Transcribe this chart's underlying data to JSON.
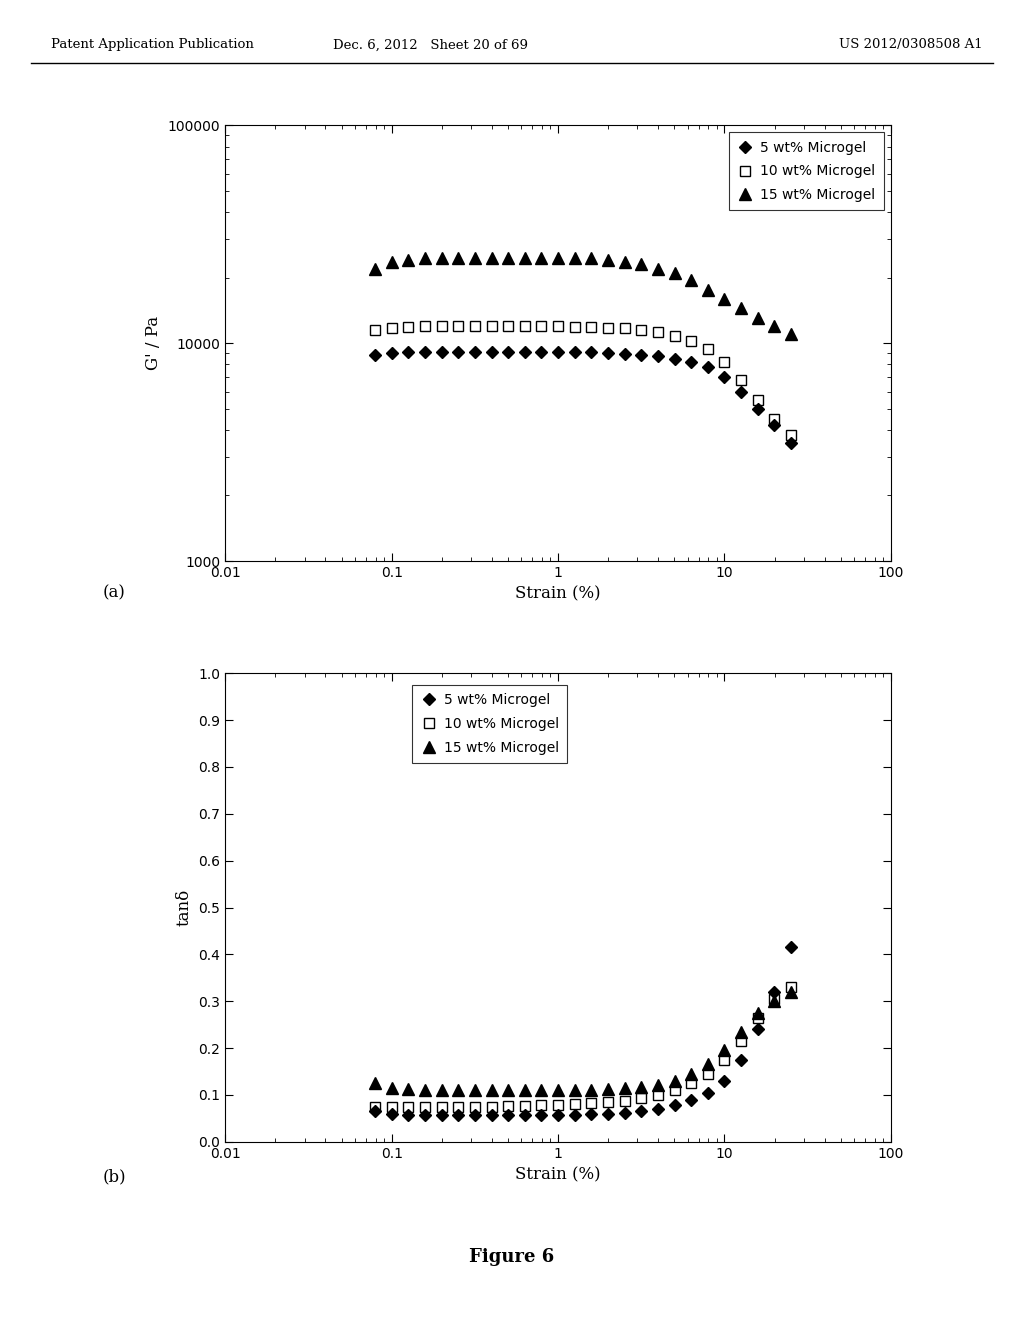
{
  "header_left": "Patent Application Publication",
  "header_mid": "Dec. 6, 2012   Sheet 20 of 69",
  "header_right": "US 2012/0308508 A1",
  "figure_label": "Figure 6",
  "panel_a_label": "(a)",
  "panel_b_label": "(b)",
  "bg_color": "#ffffff",
  "plot_bg": "#ffffff",
  "panel_a": {
    "ylabel": "G' / Pa",
    "xlabel": "Strain (%)",
    "xlim": [
      0.01,
      100
    ],
    "ylim": [
      1000,
      100000
    ],
    "legend_entries": [
      "5 wt% Microgel",
      "10 wt% Microgel",
      "15 wt% Microgel"
    ],
    "series": {
      "s5": {
        "x": [
          0.0794,
          0.1,
          0.126,
          0.158,
          0.2,
          0.251,
          0.316,
          0.398,
          0.501,
          0.631,
          0.794,
          1.0,
          1.259,
          1.585,
          1.995,
          2.512,
          3.162,
          3.981,
          5.012,
          6.31,
          7.943,
          10.0,
          12.59,
          15.85,
          19.95,
          25.12
        ],
        "y": [
          8800,
          9000,
          9100,
          9100,
          9100,
          9100,
          9100,
          9100,
          9100,
          9100,
          9100,
          9100,
          9100,
          9100,
          9000,
          8900,
          8800,
          8700,
          8500,
          8200,
          7800,
          7000,
          6000,
          5000,
          4200,
          3500
        ],
        "marker": "D",
        "color": "#000000",
        "filled": true,
        "markersize": 6
      },
      "s10": {
        "x": [
          0.0794,
          0.1,
          0.126,
          0.158,
          0.2,
          0.251,
          0.316,
          0.398,
          0.501,
          0.631,
          0.794,
          1.0,
          1.259,
          1.585,
          1.995,
          2.512,
          3.162,
          3.981,
          5.012,
          6.31,
          7.943,
          10.0,
          12.59,
          15.85,
          19.95,
          25.12
        ],
        "y": [
          11500,
          11800,
          11900,
          12000,
          12000,
          12000,
          12000,
          12000,
          12000,
          12000,
          12000,
          12000,
          11900,
          11900,
          11800,
          11700,
          11500,
          11200,
          10800,
          10200,
          9400,
          8200,
          6800,
          5500,
          4500,
          3800
        ],
        "marker": "s",
        "color": "#000000",
        "filled": false,
        "markersize": 7
      },
      "s15": {
        "x": [
          0.0794,
          0.1,
          0.126,
          0.158,
          0.2,
          0.251,
          0.316,
          0.398,
          0.501,
          0.631,
          0.794,
          1.0,
          1.259,
          1.585,
          1.995,
          2.512,
          3.162,
          3.981,
          5.012,
          6.31,
          7.943,
          10.0,
          12.59,
          15.85,
          19.95,
          25.12
        ],
        "y": [
          22000,
          23500,
          24000,
          24500,
          24500,
          24500,
          24500,
          24500,
          24500,
          24500,
          24500,
          24500,
          24500,
          24500,
          24000,
          23500,
          23000,
          22000,
          21000,
          19500,
          17500,
          16000,
          14500,
          13000,
          12000,
          11000
        ],
        "marker": "^",
        "color": "#000000",
        "filled": true,
        "markersize": 8
      }
    }
  },
  "panel_b": {
    "ylabel": "tanδ",
    "xlabel": "Strain (%)",
    "xlim": [
      0.01,
      100
    ],
    "ylim": [
      0.0,
      1.0
    ],
    "yticks": [
      0.0,
      0.1,
      0.2,
      0.3,
      0.4,
      0.5,
      0.6,
      0.7,
      0.8,
      0.9,
      1.0
    ],
    "legend_entries": [
      "5 wt% Microgel",
      "10 wt% Microgel",
      "15 wt% Microgel"
    ],
    "series": {
      "s5": {
        "x": [
          0.0794,
          0.1,
          0.126,
          0.158,
          0.2,
          0.251,
          0.316,
          0.398,
          0.501,
          0.631,
          0.794,
          1.0,
          1.259,
          1.585,
          1.995,
          2.512,
          3.162,
          3.981,
          5.012,
          6.31,
          7.943,
          10.0,
          12.59,
          15.85,
          19.95,
          25.12
        ],
        "y": [
          0.065,
          0.06,
          0.058,
          0.057,
          0.057,
          0.057,
          0.057,
          0.057,
          0.057,
          0.057,
          0.057,
          0.058,
          0.058,
          0.059,
          0.06,
          0.062,
          0.065,
          0.07,
          0.078,
          0.09,
          0.105,
          0.13,
          0.175,
          0.24,
          0.32,
          0.415
        ],
        "marker": "D",
        "color": "#000000",
        "filled": true,
        "markersize": 6
      },
      "s10": {
        "x": [
          0.0794,
          0.1,
          0.126,
          0.158,
          0.2,
          0.251,
          0.316,
          0.398,
          0.501,
          0.631,
          0.794,
          1.0,
          1.259,
          1.585,
          1.995,
          2.512,
          3.162,
          3.981,
          5.012,
          6.31,
          7.943,
          10.0,
          12.59,
          15.85,
          19.95,
          25.12
        ],
        "y": [
          0.075,
          0.075,
          0.075,
          0.075,
          0.075,
          0.075,
          0.075,
          0.075,
          0.076,
          0.077,
          0.078,
          0.079,
          0.08,
          0.082,
          0.085,
          0.088,
          0.093,
          0.1,
          0.11,
          0.125,
          0.145,
          0.175,
          0.215,
          0.265,
          0.305,
          0.33
        ],
        "marker": "s",
        "color": "#000000",
        "filled": false,
        "markersize": 7
      },
      "s15": {
        "x": [
          0.0794,
          0.1,
          0.126,
          0.158,
          0.2,
          0.251,
          0.316,
          0.398,
          0.501,
          0.631,
          0.794,
          1.0,
          1.259,
          1.585,
          1.995,
          2.512,
          3.162,
          3.981,
          5.012,
          6.31,
          7.943,
          10.0,
          12.59,
          15.85,
          19.95,
          25.12
        ],
        "y": [
          0.125,
          0.115,
          0.112,
          0.111,
          0.11,
          0.11,
          0.11,
          0.11,
          0.11,
          0.11,
          0.11,
          0.11,
          0.11,
          0.111,
          0.112,
          0.114,
          0.117,
          0.122,
          0.13,
          0.145,
          0.165,
          0.195,
          0.235,
          0.275,
          0.3,
          0.32
        ],
        "marker": "^",
        "color": "#000000",
        "filled": true,
        "markersize": 8
      }
    }
  }
}
